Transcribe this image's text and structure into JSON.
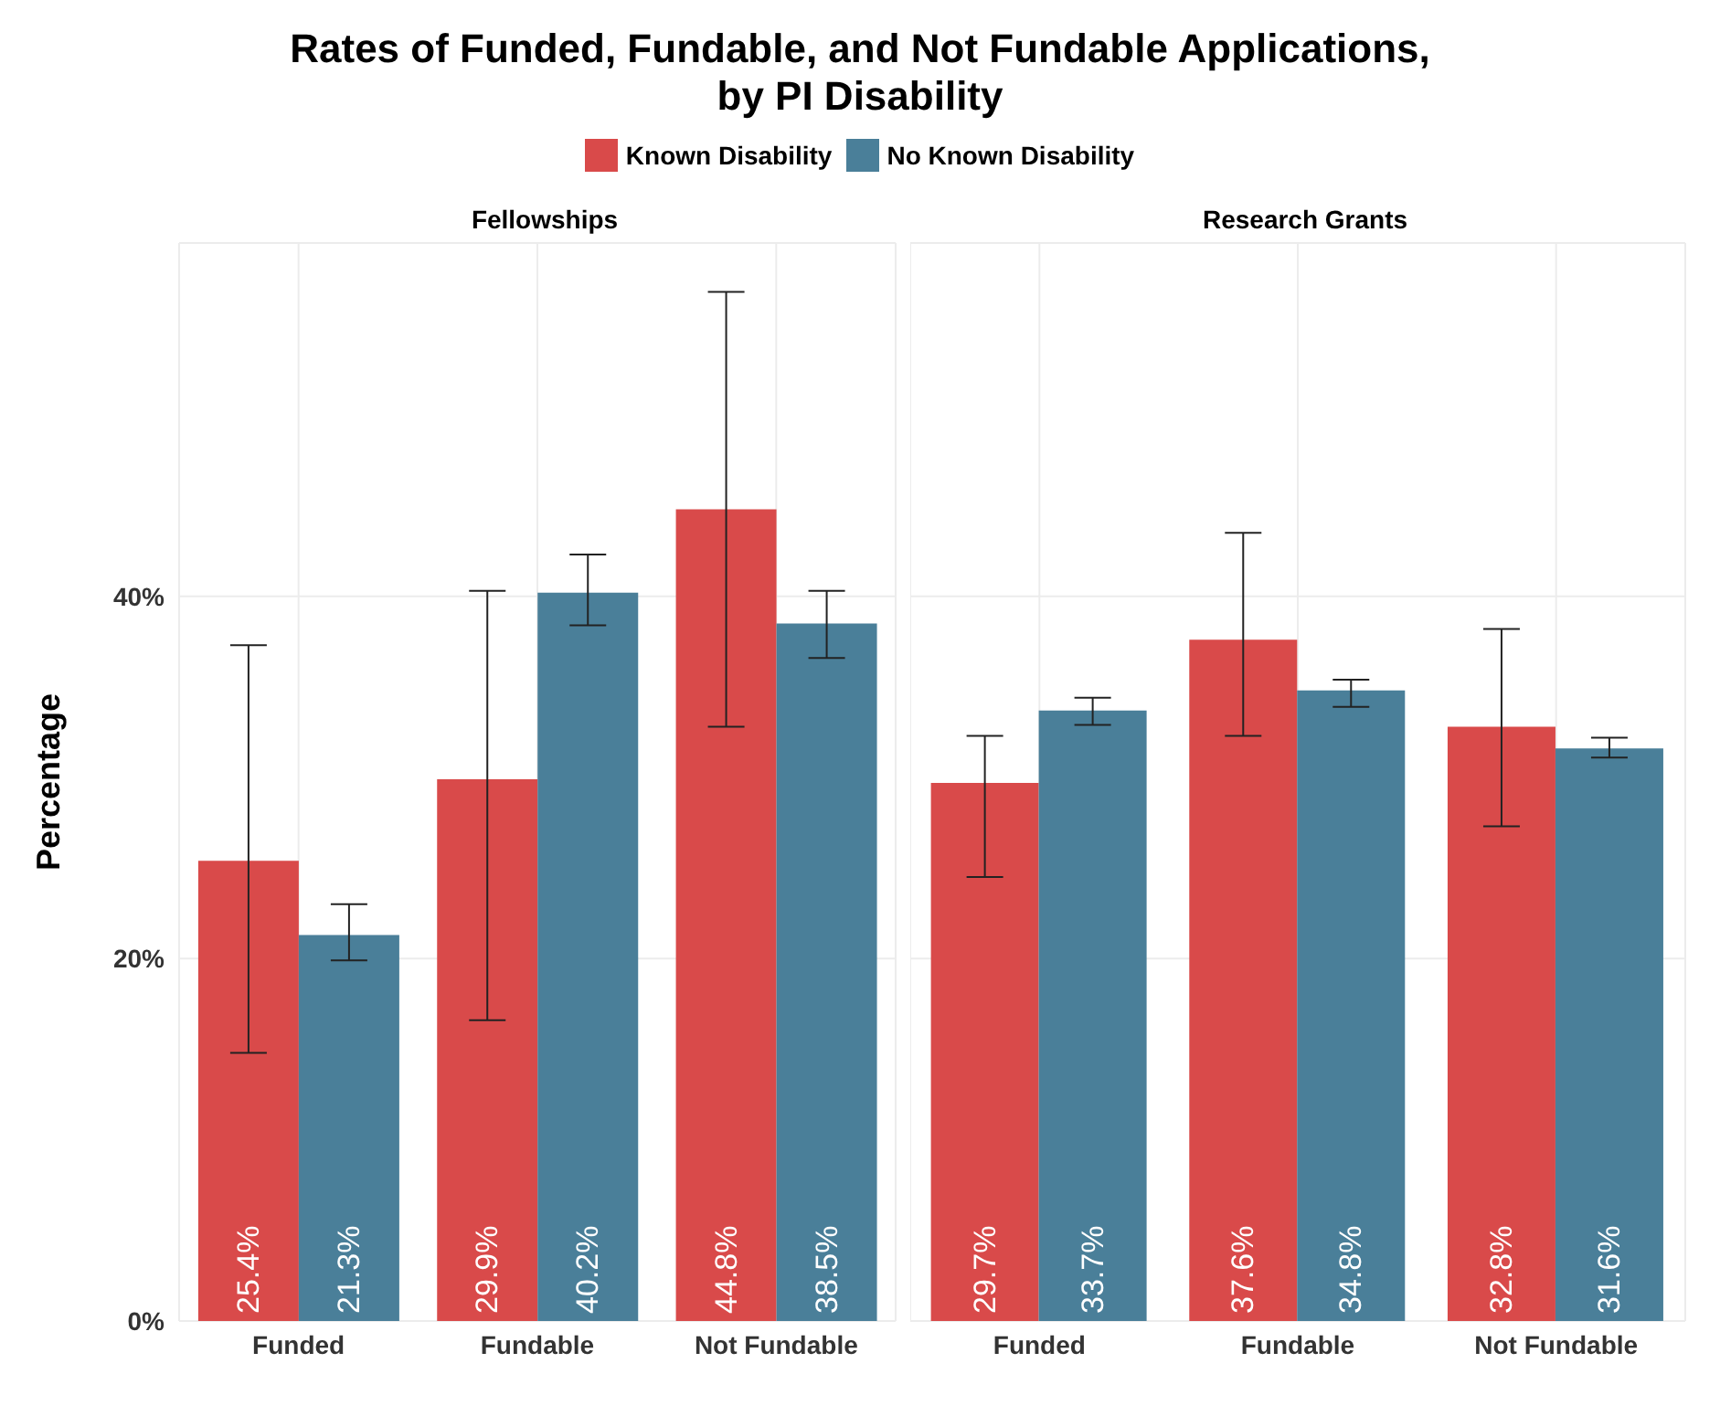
{
  "chart_data": [
    {
      "type": "bar",
      "title": "Rates of Funded, Fundable, and Not Fundable Applications,\nby PI Disability",
      "subtitle": "Fellowships",
      "ylabel": "Percentage",
      "categories": [
        "Funded",
        "Fundable",
        "Not Fundable"
      ],
      "series": [
        {
          "name": "Known Disability",
          "color": "#d94a4a",
          "values": [
            25.4,
            29.9,
            44.8
          ],
          "errors": [
            [
              14.8,
              37.3
            ],
            [
              16.6,
              40.3
            ],
            [
              32.8,
              56.8
            ]
          ],
          "value_labels": [
            "25.4%",
            "29.9%",
            "44.8%"
          ]
        },
        {
          "name": "No Known Disability",
          "color": "#4a7f99",
          "values": [
            21.3,
            40.2,
            38.5
          ],
          "errors": [
            [
              19.9,
              23.0
            ],
            [
              38.4,
              42.3
            ],
            [
              36.6,
              40.3
            ]
          ],
          "value_labels": [
            "21.3%",
            "40.2%",
            "38.5%"
          ]
        }
      ],
      "ylim": [
        0,
        59.5
      ],
      "yticks": [
        {
          "value": 0,
          "label": "0%"
        },
        {
          "value": 20,
          "label": "20%"
        },
        {
          "value": 40,
          "label": "40%"
        }
      ],
      "grid": true,
      "legend": "top"
    },
    {
      "type": "bar",
      "subtitle": "Research Grants",
      "categories": [
        "Funded",
        "Fundable",
        "Not Fundable"
      ],
      "series": [
        {
          "color": "#d94a4a",
          "values": [
            29.7,
            37.6,
            32.8
          ],
          "errors": [
            [
              24.5,
              32.3
            ],
            [
              32.3,
              43.5
            ],
            [
              27.3,
              38.2
            ]
          ],
          "value_labels": [
            "29.7%",
            "37.6%",
            "32.8%"
          ]
        },
        {
          "color": "#4a7f99",
          "values": [
            33.7,
            34.8,
            31.6
          ],
          "errors": [
            [
              32.9,
              34.4
            ],
            [
              33.9,
              35.4
            ],
            [
              31.1,
              32.2
            ]
          ],
          "value_labels": [
            "33.7%",
            "34.8%",
            "31.6%"
          ]
        }
      ],
      "ylim": [
        0,
        59.5
      ],
      "yticks": [
        0,
        20,
        40
      ],
      "grid": true,
      "tick_labels": "x"
    }
  ]
}
